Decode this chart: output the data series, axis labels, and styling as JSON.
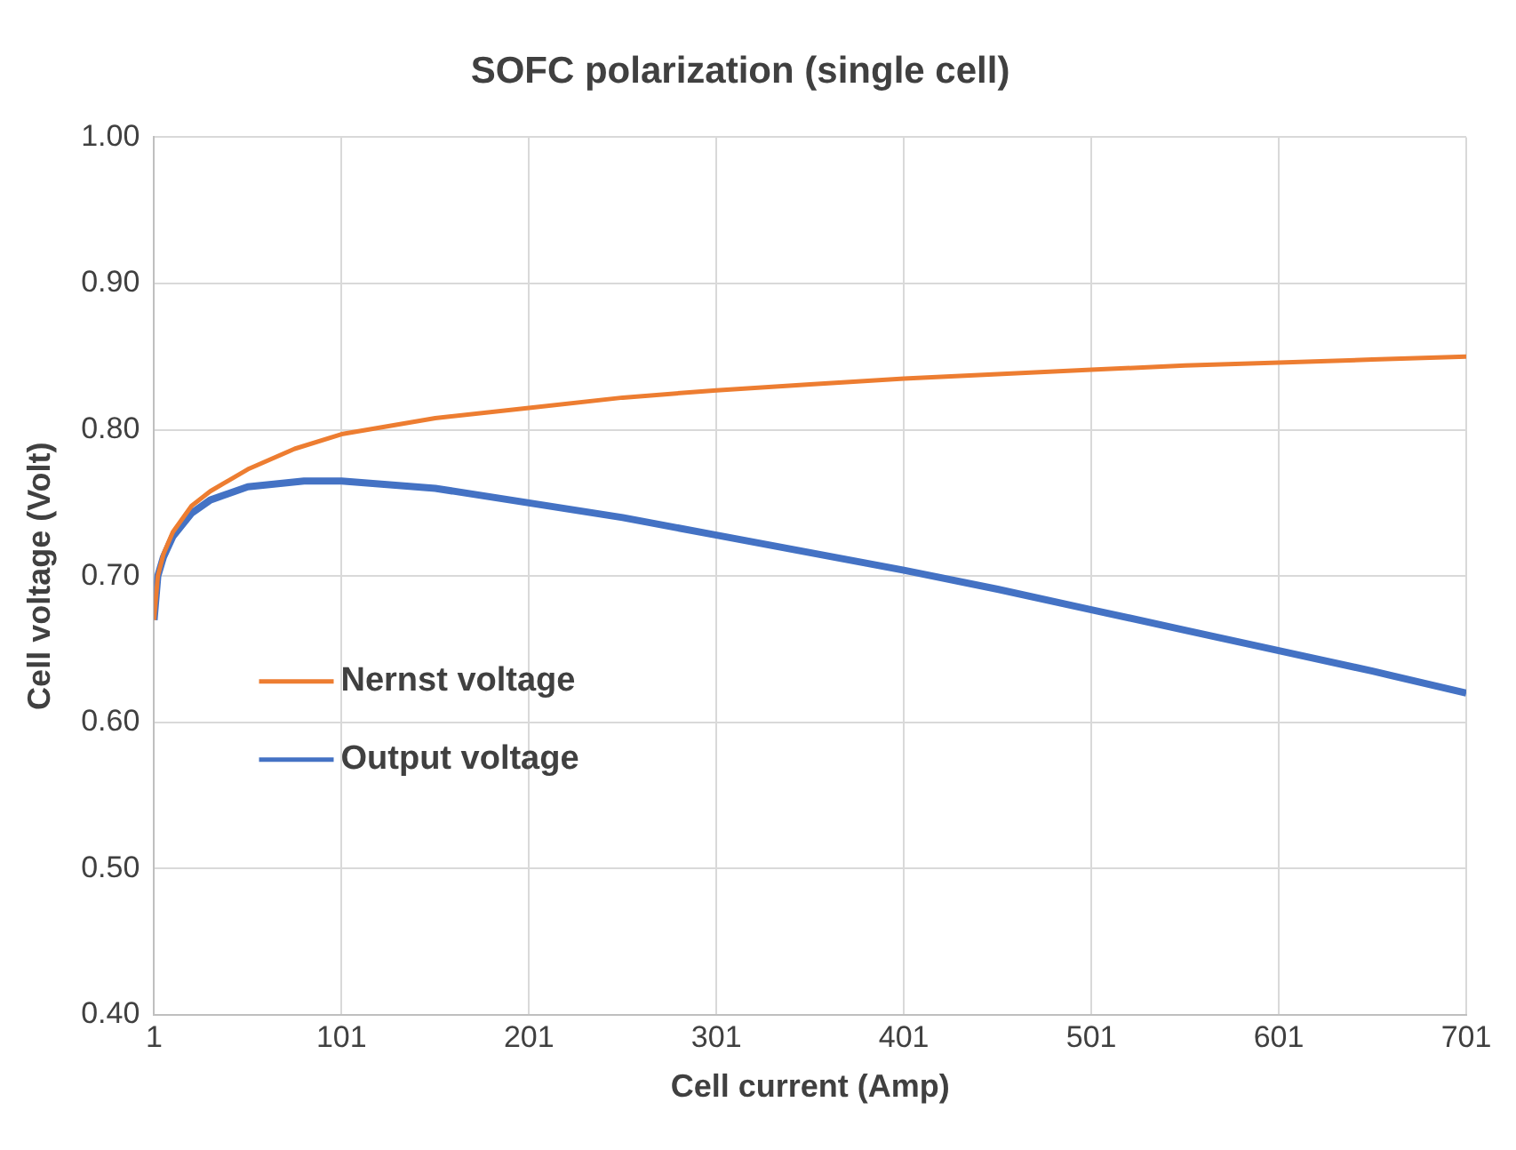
{
  "chart_data": {
    "type": "line",
    "title": "SOFC polarization (single cell)",
    "xlabel": "Cell current (Amp)",
    "ylabel": "Cell voltage (Volt)",
    "xlim": [
      1,
      701
    ],
    "xticks": [
      1,
      101,
      201,
      301,
      401,
      501,
      601,
      701
    ],
    "ylim": [
      0.4,
      1.0
    ],
    "yticks": [
      {
        "value": 0.4,
        "label": "0.40"
      },
      {
        "value": 0.5,
        "label": "0.50"
      },
      {
        "value": 0.6,
        "label": "0.60"
      },
      {
        "value": 0.7,
        "label": "0.70"
      },
      {
        "value": 0.8,
        "label": "0.80"
      },
      {
        "value": 0.9,
        "label": "0.90"
      },
      {
        "value": 1.0,
        "label": "1.00"
      }
    ],
    "grid": true,
    "legend": "left",
    "marker": "none",
    "line_style": "solid",
    "series": [
      {
        "name": "Nernst voltage",
        "color": "#ed7d31",
        "x": [
          1,
          3,
          6,
          11,
          21,
          31,
          51,
          76,
          101,
          151,
          201,
          251,
          301,
          351,
          401,
          451,
          501,
          551,
          601,
          651,
          701
        ],
        "values": [
          0.67,
          0.7,
          0.715,
          0.73,
          0.748,
          0.758,
          0.773,
          0.787,
          0.797,
          0.808,
          0.815,
          0.822,
          0.827,
          0.831,
          0.835,
          0.838,
          0.841,
          0.844,
          0.846,
          0.848,
          0.85
        ]
      },
      {
        "name": "Output voltage",
        "color": "#4472c4",
        "x": [
          1,
          3,
          6,
          11,
          21,
          31,
          51,
          81,
          101,
          151,
          201,
          251,
          301,
          351,
          401,
          451,
          501,
          551,
          601,
          651,
          701
        ],
        "values": [
          0.67,
          0.7,
          0.713,
          0.727,
          0.743,
          0.752,
          0.761,
          0.765,
          0.765,
          0.76,
          0.75,
          0.74,
          0.728,
          0.716,
          0.704,
          0.691,
          0.677,
          0.663,
          0.649,
          0.635,
          0.62
        ]
      }
    ]
  }
}
